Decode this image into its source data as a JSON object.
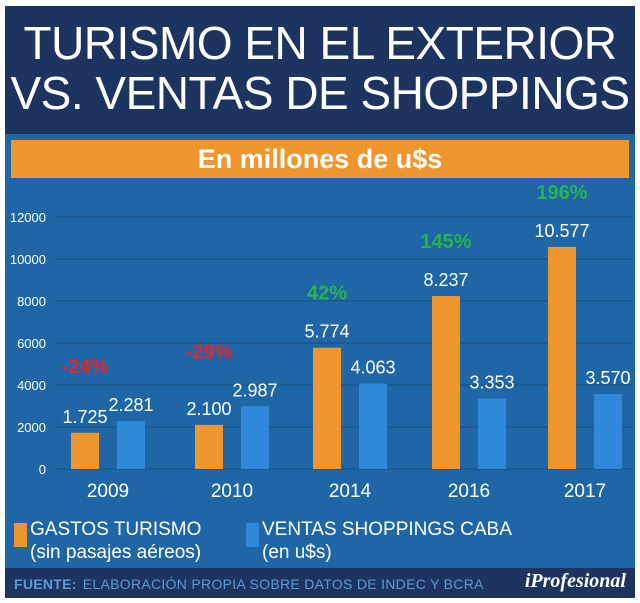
{
  "title": {
    "line1": "TURISMO EN EL EXTERIOR",
    "line2": "VS. VENTAS DE SHOPPINGS"
  },
  "subtitle": "En millones de u$s",
  "chart_data": {
    "type": "bar",
    "categories": [
      "2009",
      "2010",
      "2014",
      "2016",
      "2017"
    ],
    "series": [
      {
        "name": "GASTOS TURISMO",
        "sublabel": "(sin pasajes aéreos)",
        "color": "#f0962e",
        "values": [
          1725,
          2100,
          5774,
          8237,
          10577
        ],
        "labels": [
          "1.725",
          "2.100",
          "5.774",
          "8.237",
          "10.577"
        ]
      },
      {
        "name": "VENTAS SHOPPINGS CABA",
        "sublabel": "(en u$s)",
        "color": "#2f88d8",
        "values": [
          2281,
          2987,
          4063,
          3353,
          3570
        ],
        "labels": [
          "2.281",
          "2.987",
          "4.063",
          "3.353",
          "3.570"
        ]
      }
    ],
    "changes": [
      {
        "text": "-24%",
        "color": "#e8232d"
      },
      {
        "text": "-29%",
        "color": "#e8232d"
      },
      {
        "text": "42%",
        "color": "#2bb24c"
      },
      {
        "text": "145%",
        "color": "#2bb24c"
      },
      {
        "text": "196%",
        "color": "#2bb24c"
      }
    ],
    "yticks": [
      "0",
      "2000",
      "4000",
      "6000",
      "8000",
      "10000",
      "12000"
    ],
    "ylim": [
      0,
      12000
    ],
    "grid": true
  },
  "source": {
    "label": "FUENTE:",
    "text": "ELABORACIÓN PROPIA SOBRE DATOS DE INDEC Y BCRA"
  },
  "brand": "iProfesional",
  "colors": {
    "header": "#1d3461",
    "panel": "#1e66a5",
    "orange": "#f0962e",
    "blue": "#2f88d8"
  }
}
